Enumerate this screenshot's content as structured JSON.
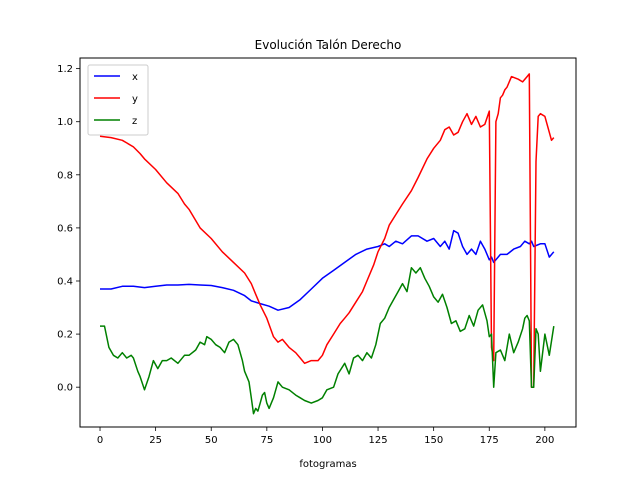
{
  "chart_data": {
    "type": "line",
    "title": "Evolución Talón Derecho",
    "xlabel": "fotogramas",
    "ylabel": "",
    "xlim": [
      -9,
      214
    ],
    "ylim": [
      -0.15,
      1.24
    ],
    "xticks": [
      0,
      25,
      50,
      75,
      100,
      125,
      150,
      175,
      200
    ],
    "yticks": [
      0.0,
      0.2,
      0.4,
      0.6,
      0.8,
      1.0,
      1.2
    ],
    "legend_position": "top-left",
    "grid": false,
    "series": [
      {
        "name": "x",
        "color": "#0000ff",
        "x": [
          0,
          5,
          10,
          15,
          20,
          25,
          30,
          35,
          40,
          45,
          50,
          55,
          60,
          65,
          68,
          72,
          76,
          80,
          85,
          90,
          95,
          100,
          105,
          110,
          115,
          120,
          125,
          128,
          130,
          133,
          136,
          140,
          143,
          147,
          150,
          153,
          155,
          157,
          159,
          161,
          163,
          165,
          167,
          169,
          171,
          173,
          175,
          176,
          177,
          180,
          183,
          186,
          189,
          191,
          193,
          194,
          195,
          198,
          200,
          202,
          204
        ],
        "y": [
          0.37,
          0.37,
          0.38,
          0.38,
          0.375,
          0.38,
          0.385,
          0.385,
          0.387,
          0.385,
          0.383,
          0.375,
          0.365,
          0.345,
          0.325,
          0.315,
          0.305,
          0.29,
          0.3,
          0.33,
          0.37,
          0.41,
          0.44,
          0.47,
          0.5,
          0.52,
          0.53,
          0.54,
          0.53,
          0.55,
          0.54,
          0.57,
          0.57,
          0.55,
          0.56,
          0.53,
          0.55,
          0.52,
          0.59,
          0.58,
          0.53,
          0.5,
          0.52,
          0.5,
          0.55,
          0.52,
          0.48,
          0.49,
          0.47,
          0.5,
          0.5,
          0.52,
          0.53,
          0.55,
          0.54,
          0.55,
          0.53,
          0.54,
          0.54,
          0.49,
          0.51
        ]
      },
      {
        "name": "y",
        "color": "#ff0000",
        "x": [
          0,
          5,
          10,
          12,
          15,
          18,
          20,
          25,
          30,
          35,
          38,
          40,
          45,
          50,
          55,
          60,
          65,
          68,
          70,
          72,
          75,
          78,
          80,
          82,
          85,
          88,
          90,
          92,
          95,
          98,
          100,
          102,
          105,
          108,
          110,
          112,
          115,
          118,
          120,
          123,
          125,
          128,
          130,
          133,
          136,
          140,
          143,
          147,
          150,
          153,
          155,
          157,
          159,
          161,
          163,
          165,
          167,
          169,
          171,
          173,
          175,
          176,
          177,
          178,
          179,
          180,
          181,
          182,
          183,
          185,
          188,
          190,
          192,
          193,
          194,
          195,
          196,
          197,
          198,
          200,
          202,
          203,
          204
        ],
        "y": [
          0.945,
          0.94,
          0.93,
          0.92,
          0.905,
          0.88,
          0.86,
          0.82,
          0.77,
          0.73,
          0.69,
          0.67,
          0.6,
          0.56,
          0.51,
          0.47,
          0.43,
          0.39,
          0.35,
          0.31,
          0.26,
          0.19,
          0.17,
          0.18,
          0.15,
          0.13,
          0.11,
          0.09,
          0.1,
          0.1,
          0.12,
          0.16,
          0.2,
          0.24,
          0.26,
          0.28,
          0.32,
          0.36,
          0.4,
          0.46,
          0.51,
          0.56,
          0.61,
          0.65,
          0.69,
          0.74,
          0.79,
          0.86,
          0.9,
          0.93,
          0.97,
          0.98,
          0.95,
          0.96,
          1.0,
          1.03,
          0.99,
          1.02,
          0.98,
          0.99,
          1.04,
          0.15,
          0.1,
          1.0,
          1.03,
          1.09,
          1.1,
          1.12,
          1.13,
          1.17,
          1.16,
          1.15,
          1.17,
          1.18,
          0.0,
          0.0,
          0.85,
          1.02,
          1.03,
          1.02,
          0.96,
          0.93,
          0.94
        ]
      },
      {
        "name": "z",
        "color": "#008000",
        "x": [
          0,
          2,
          4,
          6,
          8,
          10,
          12,
          14,
          15,
          17,
          18,
          20,
          22,
          24,
          26,
          28,
          30,
          32,
          35,
          38,
          40,
          43,
          45,
          47,
          48,
          50,
          52,
          54,
          56,
          58,
          60,
          62,
          64,
          65,
          66,
          67,
          68,
          69,
          70,
          71,
          72,
          73,
          74,
          75,
          76,
          77,
          78,
          80,
          82,
          85,
          88,
          90,
          92,
          95,
          98,
          100,
          102,
          105,
          107,
          110,
          112,
          114,
          116,
          118,
          120,
          122,
          124,
          126,
          128,
          130,
          132,
          134,
          136,
          138,
          140,
          142,
          144,
          146,
          148,
          150,
          152,
          154,
          156,
          158,
          160,
          162,
          164,
          166,
          168,
          170,
          172,
          174,
          175,
          176,
          177,
          178,
          180,
          182,
          184,
          186,
          188,
          190,
          191,
          192,
          193,
          194,
          195,
          196,
          197,
          198,
          200,
          202,
          204
        ],
        "y": [
          0.23,
          0.23,
          0.15,
          0.12,
          0.11,
          0.13,
          0.11,
          0.12,
          0.11,
          0.06,
          0.04,
          -0.01,
          0.04,
          0.1,
          0.07,
          0.1,
          0.1,
          0.11,
          0.09,
          0.12,
          0.12,
          0.14,
          0.17,
          0.16,
          0.19,
          0.18,
          0.16,
          0.15,
          0.13,
          0.17,
          0.18,
          0.16,
          0.1,
          0.06,
          0.04,
          0.02,
          -0.04,
          -0.1,
          -0.08,
          -0.09,
          -0.06,
          -0.03,
          -0.02,
          -0.06,
          -0.08,
          -0.06,
          -0.04,
          0.02,
          0.0,
          -0.01,
          -0.03,
          -0.04,
          -0.05,
          -0.06,
          -0.05,
          -0.04,
          -0.01,
          0.0,
          0.05,
          0.09,
          0.05,
          0.11,
          0.12,
          0.1,
          0.13,
          0.11,
          0.16,
          0.24,
          0.26,
          0.3,
          0.33,
          0.36,
          0.39,
          0.36,
          0.45,
          0.43,
          0.45,
          0.41,
          0.38,
          0.34,
          0.32,
          0.35,
          0.3,
          0.24,
          0.25,
          0.21,
          0.22,
          0.27,
          0.23,
          0.29,
          0.31,
          0.25,
          0.19,
          0.2,
          0.0,
          0.13,
          0.14,
          0.1,
          0.2,
          0.13,
          0.17,
          0.22,
          0.26,
          0.27,
          0.25,
          0.0,
          0.0,
          0.22,
          0.2,
          0.06,
          0.2,
          0.12,
          0.23
        ]
      }
    ]
  }
}
